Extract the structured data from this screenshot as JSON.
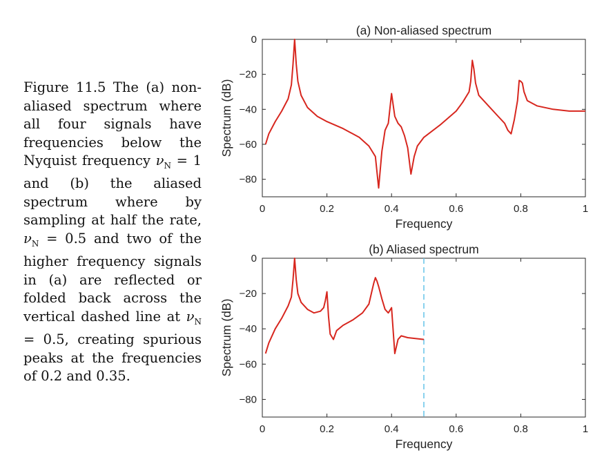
{
  "caption": {
    "figure_label": "Figure 11.5",
    "text_before_nu1": "The (a) non-aliased spectrum where all four signals have frequencies below the Nyquist frequency",
    "nu_symbol": "ν",
    "nu_subscript": "N",
    "equals_1": "= 1",
    "text_between": "and (b) the aliased spectrum where by sampling at half the rate,",
    "equals_2": "= 0.5",
    "text_before_nu3": "and two of the higher frequency signals in (a) are reflected or folded back across the vertical dashed line at",
    "equals_3": "= 0.5,",
    "text_after": "creating spurious peaks at the frequencies of 0.2 and 0.35."
  },
  "colors": {
    "line": "#d7261e",
    "marker": "#6cc7ea",
    "axis": "#262626"
  },
  "chart_data": [
    {
      "type": "line",
      "title": "(a)  Non-aliased spectrum",
      "xlabel": "Frequency",
      "ylabel": "Spectrum (dB)",
      "xlim": [
        0,
        1
      ],
      "ylim": [
        -90,
        0
      ],
      "xticks": [
        0,
        0.2,
        0.4,
        0.6,
        0.8,
        1
      ],
      "xtick_labels": [
        "0",
        "0.2",
        "0.4",
        "0.6",
        "0.8",
        "1"
      ],
      "yticks": [
        0,
        -20,
        -40,
        -60,
        -80
      ],
      "ytick_labels": [
        "0",
        "−20",
        "−40",
        "−60",
        "−80"
      ],
      "grid": false,
      "series": [
        {
          "x": [
            0.01,
            0.02,
            0.04,
            0.06,
            0.08,
            0.09,
            0.095,
            0.1,
            0.105,
            0.11,
            0.12,
            0.14,
            0.17,
            0.2,
            0.25,
            0.3,
            0.33,
            0.35,
            0.36,
            0.37,
            0.38,
            0.39,
            0.4,
            0.41,
            0.42,
            0.43,
            0.44,
            0.45,
            0.46,
            0.47,
            0.48,
            0.5,
            0.55,
            0.6,
            0.62,
            0.64,
            0.645,
            0.65,
            0.655,
            0.66,
            0.67,
            0.7,
            0.73,
            0.75,
            0.76,
            0.77,
            0.78,
            0.79,
            0.795,
            0.8,
            0.805,
            0.81,
            0.82,
            0.85,
            0.9,
            0.95,
            1.0
          ],
          "y": [
            -60,
            -54,
            -47,
            -41,
            -34,
            -26,
            -14,
            0,
            -14,
            -24,
            -32,
            -39,
            -44,
            -47,
            -51,
            -56,
            -61,
            -67,
            -85,
            -64,
            -52,
            -48,
            -31,
            -44,
            -48,
            -50,
            -55,
            -62,
            -77,
            -67,
            -61,
            -56,
            -49,
            -41,
            -36,
            -30,
            -24,
            -12,
            -17,
            -25,
            -32,
            -38,
            -44,
            -48,
            -52,
            -54,
            -46,
            -35,
            -23.5,
            -24,
            -25,
            -30,
            -35,
            -38,
            -40,
            -41,
            -41
          ]
        }
      ]
    },
    {
      "type": "line",
      "title": "(b)  Aliased spectrum",
      "xlabel": "Frequency",
      "ylabel": "Spectrum (dB)",
      "xlim": [
        0,
        1
      ],
      "ylim": [
        -90,
        0
      ],
      "xticks": [
        0,
        0.2,
        0.4,
        0.6,
        0.8,
        1
      ],
      "xtick_labels": [
        "0",
        "0.2",
        "0.4",
        "0.6",
        "0.8",
        "1"
      ],
      "yticks": [
        0,
        -20,
        -40,
        -60,
        -80
      ],
      "ytick_labels": [
        "0",
        "−20",
        "−40",
        "−60",
        "−80"
      ],
      "grid": false,
      "vline": 0.5,
      "series": [
        {
          "x": [
            0.01,
            0.02,
            0.04,
            0.06,
            0.08,
            0.09,
            0.095,
            0.1,
            0.105,
            0.11,
            0.12,
            0.14,
            0.16,
            0.18,
            0.19,
            0.195,
            0.2,
            0.205,
            0.21,
            0.22,
            0.23,
            0.25,
            0.28,
            0.31,
            0.33,
            0.34,
            0.345,
            0.35,
            0.355,
            0.36,
            0.37,
            0.38,
            0.39,
            0.4,
            0.41,
            0.42,
            0.43,
            0.45,
            0.5
          ],
          "y": [
            -54,
            -48,
            -40,
            -34,
            -27,
            -22,
            -12,
            0,
            -12,
            -20,
            -25,
            -29,
            -31,
            -30,
            -28,
            -24,
            -19,
            -33,
            -43,
            -46,
            -41,
            -38,
            -35,
            -31,
            -26,
            -18,
            -14,
            -11,
            -13,
            -16,
            -23,
            -29,
            -31,
            -28,
            -54,
            -46,
            -44,
            -45,
            -46
          ]
        }
      ]
    }
  ]
}
